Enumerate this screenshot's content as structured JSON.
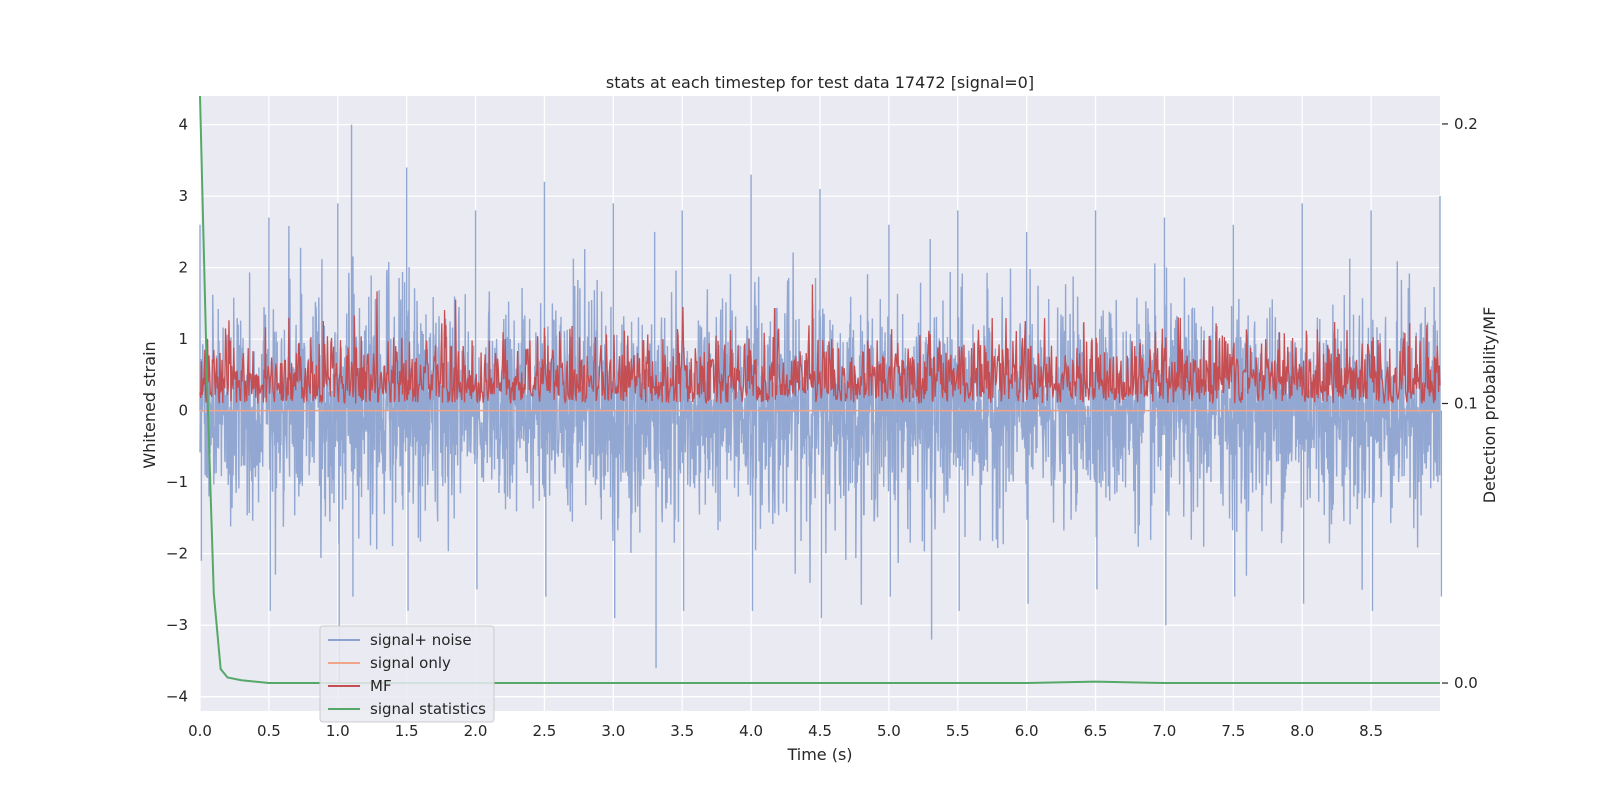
{
  "chart_data": {
    "type": "line",
    "title": "stats at each timestep for test data 17472 [signal=0]",
    "xlabel": "Time (s)",
    "ylabel": "Whitened strain",
    "ylabel_right": "Detection probability/MF",
    "xlim": [
      0,
      9
    ],
    "ylim": [
      -4.2,
      4.4
    ],
    "ylim_right": [
      -0.01,
      0.21
    ],
    "x_ticks": [
      "0.0",
      "0.5",
      "1.0",
      "1.5",
      "2.0",
      "2.5",
      "3.0",
      "3.5",
      "4.0",
      "4.5",
      "5.0",
      "5.5",
      "6.0",
      "6.5",
      "7.0",
      "7.5",
      "8.0",
      "8.5"
    ],
    "y_ticks": [
      "4",
      "3",
      "2",
      "1",
      "0",
      "−1",
      "−2",
      "−3",
      "−4"
    ],
    "y_ticks_right": [
      "0.2",
      "0.1",
      "0.0"
    ],
    "grid": true,
    "legend_position": "lower-left",
    "series": [
      {
        "name": "signal+ noise",
        "color": "#8da3cf",
        "axis": "left",
        "description_envelope": {
          "x": [
            0.0,
            0.5,
            1.0,
            1.1,
            1.5,
            2.0,
            2.5,
            3.0,
            3.3,
            3.5,
            4.0,
            4.5,
            5.0,
            5.3,
            5.5,
            6.0,
            6.5,
            7.0,
            7.5,
            8.0,
            8.5,
            9.0
          ],
          "max": [
            2.6,
            2.7,
            2.9,
            4.0,
            3.4,
            2.8,
            3.2,
            2.9,
            2.5,
            2.8,
            3.3,
            3.1,
            2.6,
            2.4,
            2.8,
            2.5,
            2.8,
            2.7,
            2.6,
            2.9,
            2.8,
            3.0
          ],
          "min": [
            -2.1,
            -2.8,
            -3.8,
            -2.6,
            -2.8,
            -2.5,
            -2.6,
            -2.9,
            -3.6,
            -2.8,
            -2.8,
            -2.9,
            -2.6,
            -3.2,
            -2.8,
            -2.7,
            -2.5,
            -3.0,
            -2.6,
            -2.7,
            -2.8,
            -2.6
          ]
        }
      },
      {
        "name": "signal only",
        "color": "#f0a58a",
        "axis": "left",
        "x": [
          0.0,
          9.0
        ],
        "y": [
          0.0,
          0.0
        ]
      },
      {
        "name": "MF",
        "color": "#c44e52",
        "axis": "right",
        "baseline": 0.1,
        "range": [
          0.1,
          0.125
        ]
      },
      {
        "name": "signal statistics",
        "color": "#55a868",
        "axis": "right",
        "x": [
          0.0,
          0.05,
          0.1,
          0.15,
          0.2,
          0.3,
          0.5,
          1.0,
          2.0,
          3.0,
          4.0,
          5.0,
          6.0,
          6.5,
          7.0,
          8.0,
          9.0
        ],
        "y": [
          0.21,
          0.11,
          0.032,
          0.005,
          0.002,
          0.001,
          0.0,
          0.0,
          0.0,
          0.0,
          0.0,
          0.0,
          0.0,
          0.0005,
          0.0,
          0.0,
          0.0
        ]
      }
    ]
  }
}
